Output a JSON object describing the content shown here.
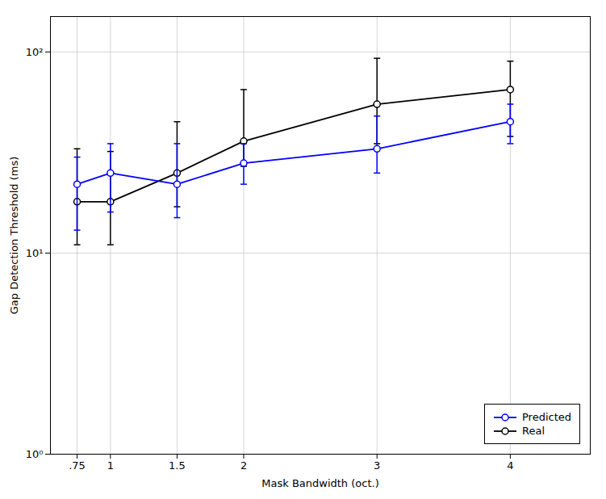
{
  "chart_data": {
    "type": "line",
    "xlabel": "Mask Bandwidth (oct.)",
    "ylabel": "Gap Detection Threshold (ms)",
    "x": [
      0.75,
      1.0,
      1.5,
      2.0,
      3.0,
      4.0
    ],
    "series": [
      {
        "name": "Predicted",
        "color": "#0000FF",
        "marker": "circle",
        "values": [
          22.0,
          25.0,
          22.0,
          28.0,
          33.0,
          45.0
        ],
        "error_low": [
          13.0,
          16.0,
          15.0,
          22.0,
          25.0,
          35.0
        ],
        "error_high": [
          30.0,
          35.0,
          35.0,
          35.0,
          48.0,
          55.0
        ]
      },
      {
        "name": "Real",
        "color": "#000000",
        "marker": "circle",
        "values": [
          18.0,
          18.0,
          25.0,
          36.0,
          55.0,
          65.0
        ],
        "error_low": [
          11.0,
          11.0,
          17.0,
          27.0,
          35.0,
          38.0
        ],
        "error_high": [
          33.0,
          32.0,
          45.0,
          65.0,
          93.0,
          90.0
        ]
      }
    ],
    "xlim": [
      0.55,
      4.6
    ],
    "ylim": [
      1.0,
      150.0
    ],
    "xticks": [
      {
        "value": 0.75,
        "label": ".75"
      },
      1,
      1.5,
      2,
      3,
      4
    ],
    "yticks": [
      {
        "value": 1,
        "label": "10⁰"
      },
      {
        "value": 10,
        "label": "10¹"
      },
      {
        "value": 100,
        "label": "10²"
      }
    ],
    "log": "y",
    "grid": true,
    "legend": "lower right"
  }
}
